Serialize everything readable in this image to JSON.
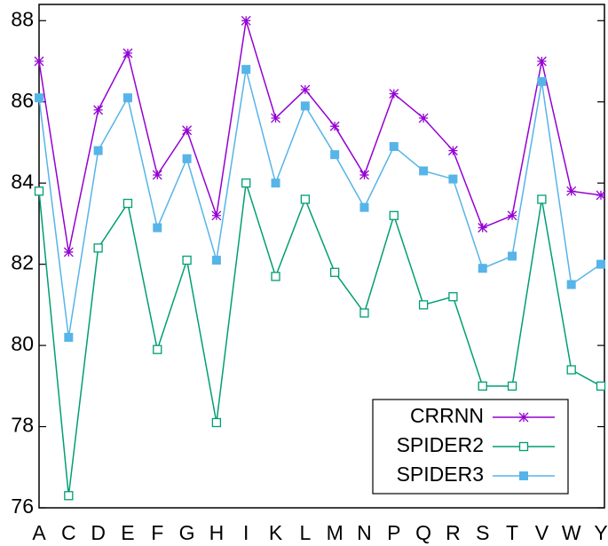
{
  "chart_data": {
    "type": "line",
    "categories": [
      "A",
      "C",
      "D",
      "E",
      "F",
      "G",
      "H",
      "I",
      "K",
      "L",
      "M",
      "N",
      "P",
      "Q",
      "R",
      "S",
      "T",
      "V",
      "W",
      "Y"
    ],
    "series": [
      {
        "name": "CRRNN",
        "color": "#9400d3",
        "marker": "asterisk",
        "values": [
          87.0,
          82.3,
          85.8,
          87.2,
          84.2,
          85.3,
          83.2,
          88.0,
          85.6,
          86.3,
          85.4,
          84.2,
          86.2,
          85.6,
          84.8,
          82.9,
          83.2,
          87.0,
          83.8,
          83.7
        ]
      },
      {
        "name": "SPIDER2",
        "color": "#009e73",
        "marker": "open-square",
        "values": [
          83.8,
          76.3,
          82.4,
          83.5,
          79.9,
          82.1,
          78.1,
          84.0,
          81.7,
          83.6,
          81.8,
          80.8,
          83.2,
          81.0,
          81.2,
          79.0,
          79.0,
          83.6,
          79.4,
          79.0
        ]
      },
      {
        "name": "SPIDER3",
        "color": "#56b4e9",
        "marker": "filled-square",
        "values": [
          86.1,
          80.2,
          84.8,
          86.1,
          82.9,
          84.6,
          82.1,
          86.8,
          84.0,
          85.9,
          84.7,
          83.4,
          84.9,
          84.3,
          84.1,
          81.9,
          82.2,
          86.5,
          81.5,
          82.0
        ]
      }
    ],
    "ylim": [
      76,
      88.4
    ],
    "yticks": [
      76,
      78,
      80,
      82,
      84,
      86,
      88
    ],
    "legend": "lower right",
    "grid": false
  }
}
